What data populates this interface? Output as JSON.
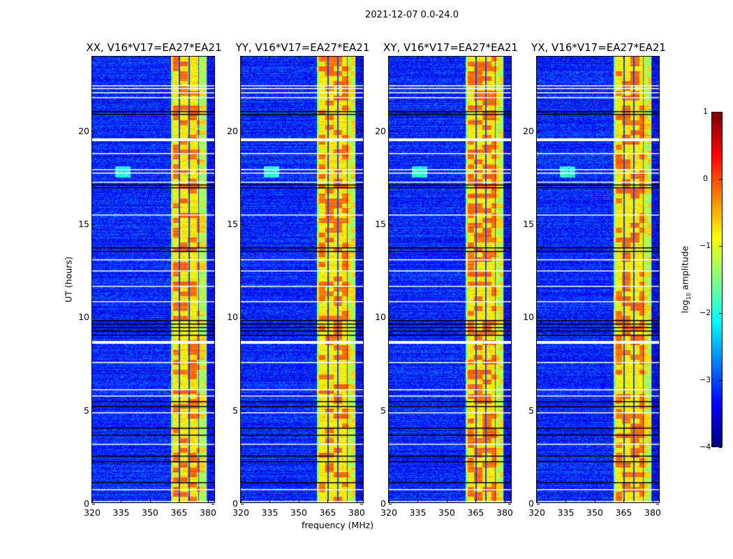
{
  "chart_data": {
    "type": "heatmap",
    "title": "2021-12-07 0.0-24.0",
    "xlabel": "frequency (MHz)",
    "ylabel": "UT (hours)",
    "xlim": [
      320,
      384
    ],
    "ylim": [
      0,
      24
    ],
    "xticks": [
      "320",
      "335",
      "350",
      "365",
      "380"
    ],
    "xtick_values": [
      320,
      335,
      350,
      365,
      380
    ],
    "yticks": [
      "0",
      "5",
      "10",
      "15",
      "20"
    ],
    "ytick_values": [
      0,
      5,
      10,
      15,
      20
    ],
    "panels": [
      {
        "title": "XX, V16*V17=EA27*EA21",
        "band_start_mhz": 361
      },
      {
        "title": "YY, V16*V17=EA27*EA21",
        "band_start_mhz": 359.5
      },
      {
        "title": "XY, V16*V17=EA27*EA21",
        "band_start_mhz": 360
      },
      {
        "title": "YX, V16*V17=EA27*EA21",
        "band_start_mhz": 360
      }
    ],
    "band_end_mhz": 380,
    "band_gaps_mhz": [
      365.5,
      370.6,
      375.6,
      380
    ],
    "background_log_amplitude": -3.2,
    "band_log_amplitude": -0.8,
    "flagged_rows_white_hours": [
      22.46,
      22.3,
      22.08,
      21.8,
      19.6,
      18.8,
      17.96,
      17.77,
      17.28,
      15.5,
      13.1,
      12.5,
      11.66,
      10.84,
      8.7,
      7.57,
      6.1,
      5.77,
      4.84,
      3.15,
      0.7,
      0.07
    ],
    "flagged_rows_black_hours": [
      21.07,
      20.9,
      17.1,
      16.95,
      13.72,
      13.54,
      9.82,
      9.64,
      9.45,
      9.26,
      9.04,
      5.44,
      5.21,
      4.01,
      3.64,
      2.51,
      2.21,
      1.09
    ],
    "colorbar": {
      "label": "log10 amplitude",
      "label_main": "log",
      "label_sub": "10",
      "label_rest": " amplitude",
      "colormap": "jet",
      "range": [
        -4,
        1
      ],
      "ticks": [
        "1",
        "0",
        "−1",
        "−2",
        "−3",
        "−4"
      ],
      "tick_values": [
        1,
        0,
        -1,
        -2,
        -3,
        -4
      ]
    }
  }
}
